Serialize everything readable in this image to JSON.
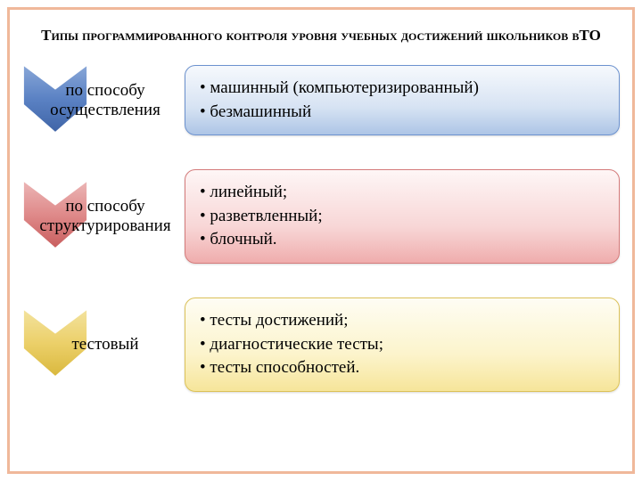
{
  "title": "Типы программированного контроля уровня учебных достижений школьников вТО",
  "rows": [
    {
      "label": "по способу осуществления",
      "bullets": [
        "машинный (компьютеризированный)",
        "безмашинный"
      ],
      "chevron_gradient": [
        "#8aa8d8",
        "#5b82c4",
        "#3f64a6"
      ],
      "box_gradient": [
        "#f6f9fd",
        "#d7e3f3",
        "#adc5e6"
      ],
      "box_border": "#6c92cf"
    },
    {
      "label": "по способу структурирования",
      "bullets": [
        "линейный;",
        "разветвленный;",
        "блочный."
      ],
      "chevron_gradient": [
        "#ecb7b7",
        "#df8a8a",
        "#c85d5d"
      ],
      "box_gradient": [
        "#fef6f6",
        "#f8d7d7",
        "#efadad"
      ],
      "box_border": "#d57b7b"
    },
    {
      "label": "тестовый",
      "bullets": [
        "тесты достижений;",
        "диагностические тесты;",
        "тесты способностей."
      ],
      "chevron_gradient": [
        "#f3e3a0",
        "#ecd06a",
        "#d9b83d"
      ],
      "box_gradient": [
        "#fefdf4",
        "#fcf4cc",
        "#f6e59a"
      ],
      "box_border": "#dcc259"
    }
  ],
  "title_fontsize": 17,
  "label_fontsize": 19,
  "bullet_fontsize": 19,
  "frame_border_color": "#f0b89a"
}
